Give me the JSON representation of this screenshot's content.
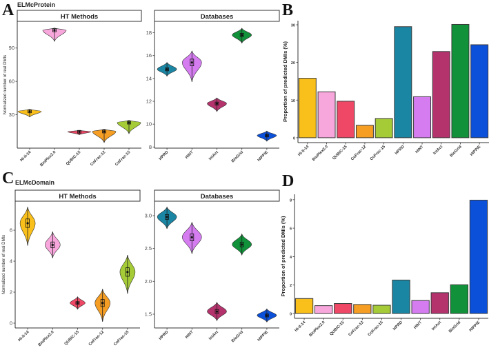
{
  "panel_labels": {
    "A": "A",
    "B": "B",
    "C": "C",
    "D": "D"
  },
  "titles": {
    "A": "ELMcProtein",
    "C": "ELMcDomain"
  },
  "colors": {
    "Hi-II-14": "#F9BF1A",
    "BioPlex2.0": "#F8A7DC",
    "QUBIC-15": "#EE4866",
    "CoFrac-12": "#F59E23",
    "CoFrac-15": "#A5CB37",
    "HPRD": "#1B86A4",
    "HINT": "#D57CF1",
    "IntAct": "#B5336D",
    "BioGrid": "#11923A",
    "HIPPIE": "#0B50D9"
  },
  "chart_data": [
    {
      "id": "A-ht",
      "type": "violin",
      "facet": "HT Methods",
      "ylabel": "Normalized number of real DMIs",
      "ylim": [
        0,
        114
      ],
      "yticks": [
        "30",
        "60",
        "90"
      ],
      "categories": [
        "Hi-II-14",
        "BioPlex2.0",
        "QUBIC-15",
        "CoFrac-12",
        "CoFrac-15"
      ],
      "median": [
        33,
        106,
        14.7,
        15,
        23
      ],
      "min": [
        28,
        96,
        12,
        5,
        13
      ],
      "max": [
        35,
        108,
        16,
        17,
        25
      ]
    },
    {
      "id": "A-db",
      "type": "violin",
      "facet": "Databases",
      "ylim": [
        7.9,
        19.0
      ],
      "yticks": [
        "8",
        "10",
        "12",
        "14",
        "16",
        "18"
      ],
      "categories": [
        "HPRD",
        "HINT",
        "IntAct",
        "BioGrid",
        "HIPPIE"
      ],
      "median": [
        14.8,
        15.4,
        11.8,
        17.8,
        9.0
      ],
      "min": [
        14.2,
        13.7,
        11.1,
        17.1,
        8.5
      ],
      "max": [
        15.4,
        16.4,
        12.3,
        18.4,
        9.4
      ]
    },
    {
      "id": "B",
      "type": "bar",
      "ylabel": "Proportion of predicted DMIs (%)",
      "ylim": [
        -1.3,
        31.1
      ],
      "yticks": [
        "0",
        "10",
        "20",
        "30"
      ],
      "categories": [
        "Hi-II-14",
        "BioPlex2.0",
        "QUBIC-15",
        "CoFrac-12",
        "CoFrac-15",
        "HPRD",
        "HINT",
        "IntAct",
        "BioGrid",
        "HIPPIE"
      ],
      "values": [
        15.8,
        12.2,
        9.7,
        3.3,
        5.1,
        29.5,
        10.9,
        22.9,
        30.1,
        24.7
      ]
    },
    {
      "id": "C-ht",
      "type": "violin",
      "facet": "HT Methods",
      "ylabel": "Normalized number of real DMIs",
      "ylim": [
        -0.31,
        7.87
      ],
      "yticks": [
        "0",
        "2",
        "4",
        "6"
      ],
      "categories": [
        "Hi-II-14",
        "BioPlex2.0",
        "QUBIC-15",
        "CoFrac-12",
        "CoFrac-15"
      ],
      "median": [
        6.45,
        5.05,
        1.3,
        1.3,
        3.3
      ],
      "min": [
        5.0,
        4.2,
        0.9,
        0.1,
        1.9
      ],
      "max": [
        7.5,
        5.9,
        1.7,
        2.2,
        4.4
      ]
    },
    {
      "id": "C-db",
      "type": "violin",
      "facet": "Databases",
      "ylim": [
        1.29,
        3.22
      ],
      "yticks": [
        "1.5",
        "2.0",
        "2.5",
        "3.0"
      ],
      "categories": [
        "HPRD",
        "HINT",
        "IntAct",
        "BioGrid",
        "HIPPIE"
      ],
      "median": [
        2.98,
        2.67,
        1.54,
        2.56,
        1.48
      ],
      "min": [
        2.8,
        2.42,
        1.4,
        2.4,
        1.38
      ],
      "max": [
        3.13,
        2.9,
        1.68,
        2.72,
        1.58
      ]
    },
    {
      "id": "D",
      "type": "bar",
      "ylabel": "Proportion of predicted DMIs (%)",
      "ylim": [
        -0.34,
        8.38
      ],
      "yticks": [
        "0",
        "2",
        "4",
        "6",
        "8"
      ],
      "categories": [
        "Hi-II-14",
        "BioPlex2.0",
        "QUBIC-15",
        "CoFrac-12",
        "CoFrac-15",
        "HPRD",
        "HINT",
        "IntAct",
        "BioGrid",
        "HIPPIE"
      ],
      "values": [
        1.05,
        0.55,
        0.7,
        0.63,
        0.58,
        2.35,
        0.91,
        1.46,
        2.02,
        7.97
      ]
    }
  ]
}
